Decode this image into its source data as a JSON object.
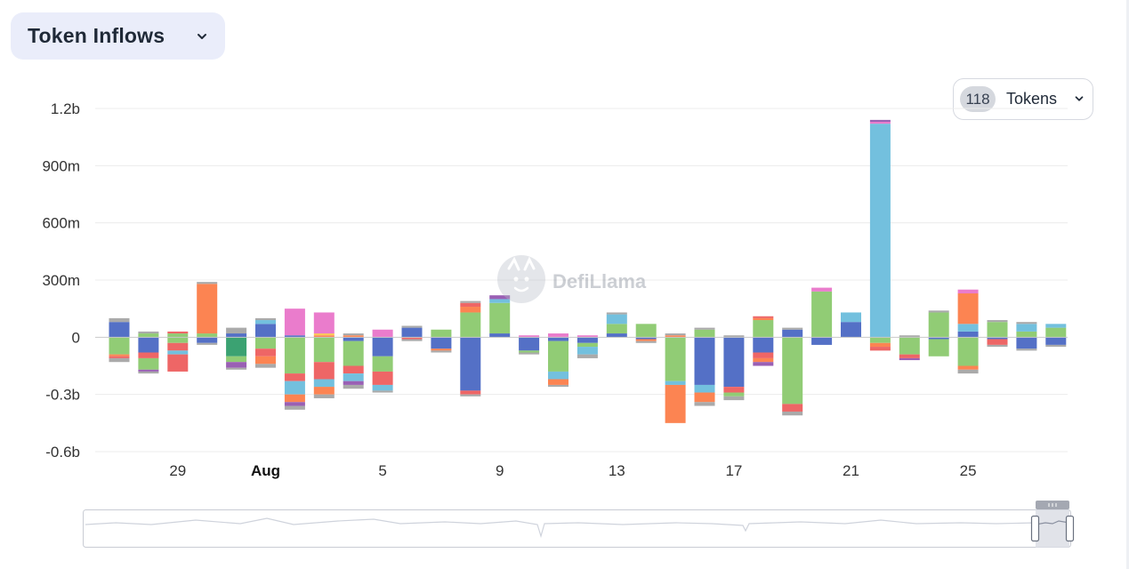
{
  "header": {
    "title": "Token Inflows"
  },
  "token_selector": {
    "count": "118",
    "label": "Tokens"
  },
  "watermark": {
    "text": "DefiLlama"
  },
  "colors": {
    "blue": "#5470c6",
    "green": "#91cc75",
    "orange": "#fc8452",
    "red": "#ee6666",
    "pink": "#ea7ccc",
    "purple": "#9a60b4",
    "sky": "#73c0de",
    "teal": "#3ba272",
    "gray": "#aaaaaa",
    "yellow": "#fac858",
    "grid": "#ececec",
    "axis_text": "#333333",
    "title_bg": "#eaedfa"
  },
  "chart_data": {
    "type": "bar",
    "stacked": true,
    "title": "",
    "xlabel": "",
    "ylabel": "",
    "ylim": [
      -0.6,
      1.2
    ],
    "y_unit": "billions USD",
    "y_ticks": [
      {
        "value": 1.2,
        "label": "1.2b"
      },
      {
        "value": 0.9,
        "label": "900m"
      },
      {
        "value": 0.6,
        "label": "600m"
      },
      {
        "value": 0.3,
        "label": "300m"
      },
      {
        "value": 0,
        "label": "0"
      },
      {
        "value": -0.3,
        "label": "-0.3b"
      },
      {
        "value": -0.6,
        "label": "-0.6b"
      }
    ],
    "x_ticks": [
      {
        "date": "2024-07-29",
        "label": "29",
        "bold": false
      },
      {
        "date": "2024-08-01",
        "label": "Aug",
        "bold": true
      },
      {
        "date": "2024-08-05",
        "label": "5",
        "bold": false
      },
      {
        "date": "2024-08-09",
        "label": "9",
        "bold": false
      },
      {
        "date": "2024-08-13",
        "label": "13",
        "bold": false
      },
      {
        "date": "2024-08-17",
        "label": "17",
        "bold": false
      },
      {
        "date": "2024-08-21",
        "label": "21",
        "bold": false
      },
      {
        "date": "2024-08-25",
        "label": "25",
        "bold": false
      }
    ],
    "grid": true,
    "legend": "none",
    "dates": [
      "2024-07-27",
      "2024-07-28",
      "2024-07-29",
      "2024-07-30",
      "2024-07-31",
      "2024-08-01",
      "2024-08-02",
      "2024-08-03",
      "2024-08-04",
      "2024-08-05",
      "2024-08-06",
      "2024-08-07",
      "2024-08-08",
      "2024-08-09",
      "2024-08-10",
      "2024-08-11",
      "2024-08-12",
      "2024-08-13",
      "2024-08-14",
      "2024-08-15",
      "2024-08-16",
      "2024-08-17",
      "2024-08-18",
      "2024-08-19",
      "2024-08-20",
      "2024-08-21",
      "2024-08-22",
      "2024-08-23",
      "2024-08-24",
      "2024-08-25",
      "2024-08-26",
      "2024-08-27",
      "2024-08-28",
      "2024-08-29"
    ],
    "stacks": [
      {
        "date": "2024-07-27",
        "pos": [
          [
            "blue",
            0.08
          ],
          [
            "gray",
            0.02
          ]
        ],
        "neg": [
          [
            "green",
            -0.09
          ],
          [
            "orange",
            -0.01
          ],
          [
            "red",
            -0.01
          ],
          [
            "gray",
            -0.02
          ]
        ]
      },
      {
        "date": "2024-07-28",
        "pos": [
          [
            "green",
            0.02
          ],
          [
            "gray",
            0.01
          ]
        ],
        "neg": [
          [
            "blue",
            -0.08
          ],
          [
            "red",
            -0.03
          ],
          [
            "green",
            -0.06
          ],
          [
            "purple",
            -0.01
          ],
          [
            "gray",
            -0.01
          ]
        ]
      },
      {
        "date": "2024-07-29",
        "pos": [
          [
            "green",
            0.02
          ],
          [
            "red",
            0.01
          ]
        ],
        "neg": [
          [
            "green",
            -0.03
          ],
          [
            "red",
            -0.04
          ],
          [
            "sky",
            -0.02
          ],
          [
            "red",
            -0.09
          ]
        ]
      },
      {
        "date": "2024-07-30",
        "pos": [
          [
            "green",
            0.02
          ],
          [
            "orange",
            0.26
          ],
          [
            "gray",
            0.01
          ]
        ],
        "neg": [
          [
            "blue",
            -0.03
          ],
          [
            "gray",
            -0.01
          ]
        ]
      },
      {
        "date": "2024-07-31",
        "pos": [
          [
            "blue",
            0.02
          ],
          [
            "gray",
            0.03
          ]
        ],
        "neg": [
          [
            "teal",
            -0.1
          ],
          [
            "green",
            -0.03
          ],
          [
            "purple",
            -0.03
          ],
          [
            "gray",
            -0.01
          ]
        ]
      },
      {
        "date": "2024-08-01",
        "pos": [
          [
            "blue",
            0.07
          ],
          [
            "sky",
            0.02
          ],
          [
            "gray",
            0.01
          ]
        ],
        "neg": [
          [
            "green",
            -0.06
          ],
          [
            "red",
            -0.04
          ],
          [
            "orange",
            -0.04
          ],
          [
            "gray",
            -0.02
          ]
        ]
      },
      {
        "date": "2024-08-02",
        "pos": [
          [
            "blue",
            0.01
          ],
          [
            "pink",
            0.14
          ]
        ],
        "neg": [
          [
            "green",
            -0.19
          ],
          [
            "red",
            -0.04
          ],
          [
            "sky",
            -0.07
          ],
          [
            "orange",
            -0.04
          ],
          [
            "purple",
            -0.02
          ],
          [
            "gray",
            -0.02
          ]
        ]
      },
      {
        "date": "2024-08-03",
        "pos": [
          [
            "orange",
            0.01
          ],
          [
            "yellow",
            0.01
          ],
          [
            "pink",
            0.11
          ]
        ],
        "neg": [
          [
            "green",
            -0.13
          ],
          [
            "red",
            -0.09
          ],
          [
            "sky",
            -0.04
          ],
          [
            "orange",
            -0.04
          ],
          [
            "gray",
            -0.02
          ]
        ]
      },
      {
        "date": "2024-08-04",
        "pos": [
          [
            "orange",
            0.01
          ],
          [
            "gray",
            0.01
          ]
        ],
        "neg": [
          [
            "blue",
            -0.02
          ],
          [
            "green",
            -0.13
          ],
          [
            "red",
            -0.04
          ],
          [
            "sky",
            -0.04
          ],
          [
            "purple",
            -0.02
          ],
          [
            "gray",
            -0.02
          ]
        ]
      },
      {
        "date": "2024-08-05",
        "pos": [
          [
            "pink",
            0.04
          ]
        ],
        "neg": [
          [
            "blue",
            -0.1
          ],
          [
            "green",
            -0.08
          ],
          [
            "red",
            -0.07
          ],
          [
            "sky",
            -0.03
          ],
          [
            "gray",
            -0.01
          ]
        ]
      },
      {
        "date": "2024-08-06",
        "pos": [
          [
            "blue",
            0.05
          ],
          [
            "gray",
            0.01
          ]
        ],
        "neg": [
          [
            "red",
            -0.01
          ],
          [
            "gray",
            -0.01
          ]
        ]
      },
      {
        "date": "2024-08-07",
        "pos": [
          [
            "green",
            0.04
          ]
        ],
        "neg": [
          [
            "blue",
            -0.06
          ],
          [
            "orange",
            -0.01
          ],
          [
            "gray",
            -0.01
          ]
        ]
      },
      {
        "date": "2024-08-08",
        "pos": [
          [
            "green",
            0.13
          ],
          [
            "orange",
            0.03
          ],
          [
            "red",
            0.02
          ],
          [
            "gray",
            0.01
          ]
        ],
        "neg": [
          [
            "blue",
            -0.28
          ],
          [
            "red",
            -0.02
          ],
          [
            "gray",
            -0.01
          ]
        ]
      },
      {
        "date": "2024-08-09",
        "pos": [
          [
            "blue",
            0.02
          ],
          [
            "green",
            0.16
          ],
          [
            "sky",
            0.02
          ],
          [
            "purple",
            0.02
          ]
        ],
        "neg": []
      },
      {
        "date": "2024-08-10",
        "pos": [
          [
            "pink",
            0.01
          ]
        ],
        "neg": [
          [
            "blue",
            -0.07
          ],
          [
            "green",
            -0.01
          ],
          [
            "gray",
            -0.01
          ]
        ]
      },
      {
        "date": "2024-08-11",
        "pos": [
          [
            "pink",
            0.02
          ]
        ],
        "neg": [
          [
            "blue",
            -0.02
          ],
          [
            "green",
            -0.16
          ],
          [
            "sky",
            -0.04
          ],
          [
            "orange",
            -0.03
          ],
          [
            "gray",
            -0.01
          ]
        ]
      },
      {
        "date": "2024-08-12",
        "pos": [
          [
            "pink",
            0.01
          ]
        ],
        "neg": [
          [
            "blue",
            -0.03
          ],
          [
            "green",
            -0.02
          ],
          [
            "sky",
            -0.04
          ],
          [
            "gray",
            -0.02
          ]
        ]
      },
      {
        "date": "2024-08-13",
        "pos": [
          [
            "blue",
            0.02
          ],
          [
            "green",
            0.05
          ],
          [
            "sky",
            0.05
          ],
          [
            "gray",
            0.01
          ]
        ],
        "neg": []
      },
      {
        "date": "2024-08-14",
        "pos": [
          [
            "green",
            0.07
          ]
        ],
        "neg": [
          [
            "blue",
            -0.01
          ],
          [
            "orange",
            -0.01
          ],
          [
            "gray",
            -0.01
          ]
        ]
      },
      {
        "date": "2024-08-15",
        "pos": [
          [
            "orange",
            0.01
          ],
          [
            "gray",
            0.01
          ]
        ],
        "neg": [
          [
            "green",
            -0.23
          ],
          [
            "sky",
            -0.02
          ],
          [
            "orange",
            -0.2
          ]
        ]
      },
      {
        "date": "2024-08-16",
        "pos": [
          [
            "green",
            0.04
          ],
          [
            "gray",
            0.01
          ]
        ],
        "neg": [
          [
            "blue",
            -0.25
          ],
          [
            "sky",
            -0.04
          ],
          [
            "orange",
            -0.05
          ],
          [
            "gray",
            -0.02
          ]
        ]
      },
      {
        "date": "2024-08-17",
        "pos": [
          [
            "gray",
            0.01
          ]
        ],
        "neg": [
          [
            "blue",
            -0.26
          ],
          [
            "red",
            -0.03
          ],
          [
            "green",
            -0.02
          ],
          [
            "gray",
            -0.02
          ]
        ]
      },
      {
        "date": "2024-08-18",
        "pos": [
          [
            "green",
            0.09
          ],
          [
            "orange",
            0.01
          ],
          [
            "red",
            0.01
          ]
        ],
        "neg": [
          [
            "blue",
            -0.08
          ],
          [
            "red",
            -0.03
          ],
          [
            "orange",
            -0.02
          ],
          [
            "purple",
            -0.02
          ]
        ]
      },
      {
        "date": "2024-08-19",
        "pos": [
          [
            "blue",
            0.04
          ],
          [
            "gray",
            0.01
          ]
        ],
        "neg": [
          [
            "green",
            -0.35
          ],
          [
            "red",
            -0.04
          ],
          [
            "gray",
            -0.02
          ]
        ]
      },
      {
        "date": "2024-08-20",
        "pos": [
          [
            "green",
            0.24
          ],
          [
            "pink",
            0.02
          ]
        ],
        "neg": [
          [
            "blue",
            -0.04
          ]
        ]
      },
      {
        "date": "2024-08-21",
        "pos": [
          [
            "blue",
            0.08
          ],
          [
            "sky",
            0.05
          ]
        ],
        "neg": []
      },
      {
        "date": "2024-08-22",
        "pos": [
          [
            "sky",
            1.12
          ],
          [
            "pink",
            0.01
          ],
          [
            "purple",
            0.01
          ]
        ],
        "neg": [
          [
            "green",
            -0.03
          ],
          [
            "orange",
            -0.02
          ],
          [
            "red",
            -0.02
          ]
        ]
      },
      {
        "date": "2024-08-23",
        "pos": [
          [
            "gray",
            0.01
          ]
        ],
        "neg": [
          [
            "green",
            -0.09
          ],
          [
            "red",
            -0.02
          ],
          [
            "purple",
            -0.01
          ]
        ]
      },
      {
        "date": "2024-08-24",
        "pos": [
          [
            "green",
            0.13
          ],
          [
            "gray",
            0.01
          ]
        ],
        "neg": [
          [
            "blue",
            -0.01
          ],
          [
            "green",
            -0.09
          ]
        ]
      },
      {
        "date": "2024-08-25",
        "pos": [
          [
            "blue",
            0.03
          ],
          [
            "sky",
            0.04
          ],
          [
            "orange",
            0.16
          ],
          [
            "pink",
            0.02
          ]
        ],
        "neg": [
          [
            "green",
            -0.15
          ],
          [
            "orange",
            -0.02
          ],
          [
            "gray",
            -0.02
          ]
        ]
      },
      {
        "date": "2024-08-26",
        "pos": [
          [
            "green",
            0.08
          ],
          [
            "gray",
            0.01
          ]
        ],
        "neg": [
          [
            "blue",
            -0.01
          ],
          [
            "red",
            -0.03
          ],
          [
            "gray",
            -0.01
          ]
        ]
      },
      {
        "date": "2024-08-27",
        "pos": [
          [
            "green",
            0.03
          ],
          [
            "sky",
            0.04
          ],
          [
            "gray",
            0.01
          ]
        ],
        "neg": [
          [
            "blue",
            -0.06
          ],
          [
            "gray",
            -0.01
          ]
        ]
      },
      {
        "date": "2024-08-28",
        "pos": [
          [
            "green",
            0.05
          ],
          [
            "sky",
            0.02
          ]
        ],
        "neg": [
          [
            "blue",
            -0.04
          ],
          [
            "gray",
            -0.01
          ]
        ]
      }
    ]
  }
}
